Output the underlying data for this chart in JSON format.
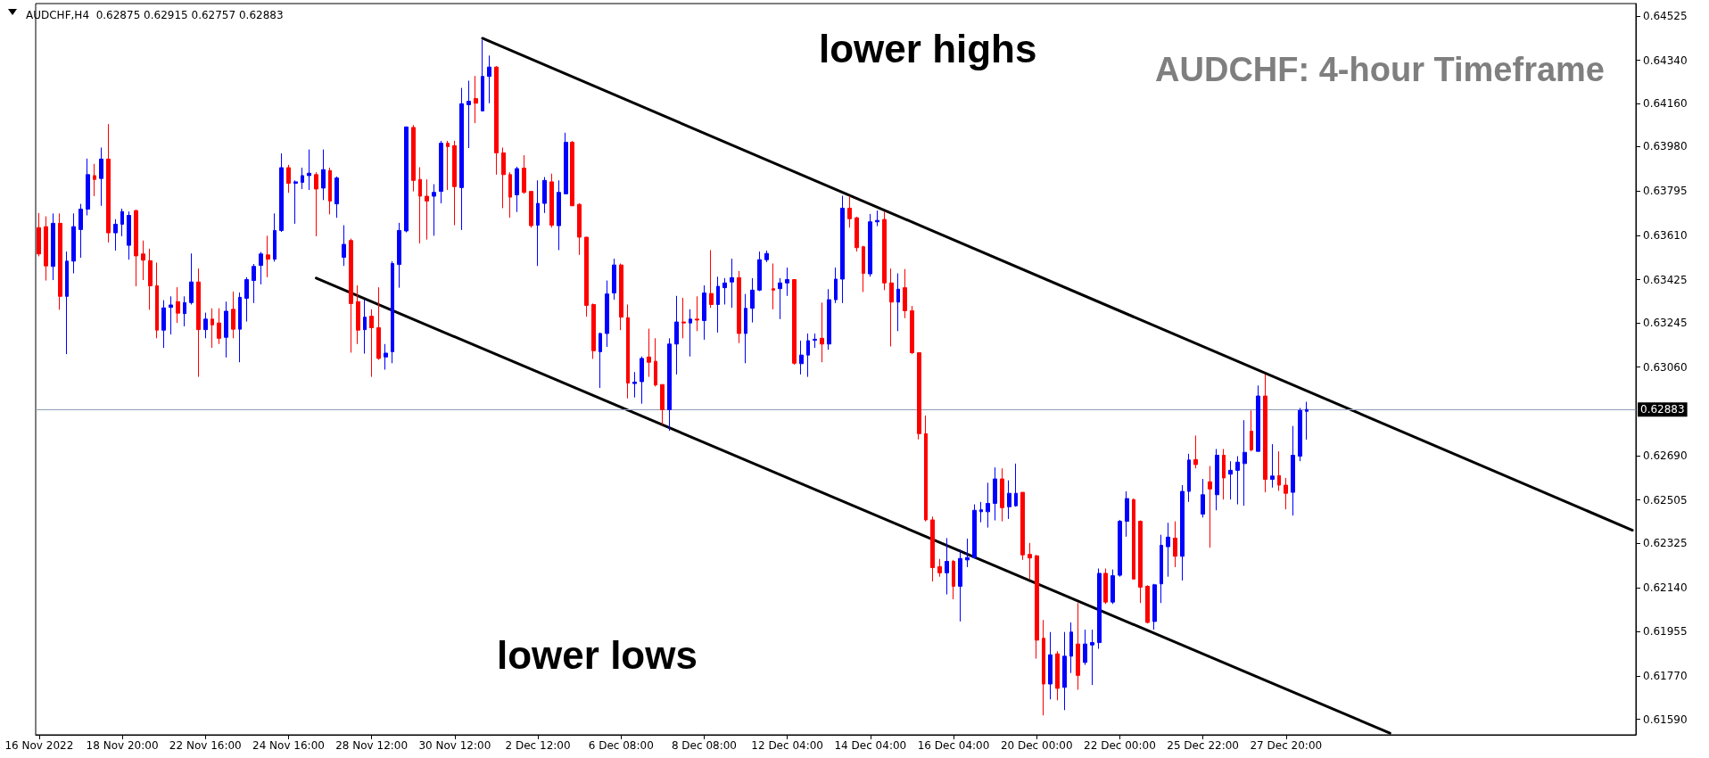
{
  "chart_data": {
    "type": "candlestick",
    "title": "AUDCHF: 4-hour Timeframe",
    "subtitle": "AUDCHF,H4  0.62875 0.62915 0.62757 0.62883",
    "annotations": [
      "lower highs",
      "lower lows"
    ],
    "colors": [
      "#ff0000",
      "#ff0000",
      "#0000ff",
      "#ff0000",
      "#0000ff",
      "#0000ff",
      "#0000ff",
      "#0000ff",
      "#ff0000",
      "#0000ff",
      "#ff0000",
      "#0000ff",
      "#0000ff",
      "#0000ff",
      "#ff0000",
      "#ff0000",
      "#ff0000",
      "#ff0000",
      "#0000ff",
      "#0000ff",
      "#ff0000",
      "#0000ff",
      "#0000ff",
      "#ff0000",
      "#0000ff",
      "#ff0000",
      "#ff0000",
      "#0000ff",
      "#ff0000",
      "#0000ff",
      "#0000ff",
      "#0000ff",
      "#0000ff",
      "#ff0000",
      "#0000ff",
      "#0000ff",
      "#ff0000",
      "#0000ff",
      "#0000ff",
      "#0000ff",
      "#ff0000",
      "#0000ff",
      "#ff0000",
      "#0000ff",
      "#0000ff",
      "#ff0000",
      "#ff0000",
      "#0000ff",
      "#ff0000",
      "#ff0000",
      "#0000ff",
      "#0000ff",
      "#0000ff",
      "#0000ff",
      "#ff0000",
      "#ff0000",
      "#ff0000",
      "#0000ff",
      "#0000ff",
      "#ff0000",
      "#ff0000",
      "#0000ff",
      "#0000ff",
      "#ff0000",
      "#0000ff",
      "#0000ff",
      "#ff0000",
      "#ff0000",
      "#ff0000",
      "#0000ff",
      "#ff0000",
      "#ff0000",
      "#0000ff",
      "#0000ff",
      "#ff0000",
      "#0000ff",
      "#0000ff",
      "#ff0000",
      "#ff0000",
      "#ff0000",
      "#ff0000",
      "#0000ff",
      "#0000ff",
      "#0000ff",
      "#ff0000",
      "#ff0000",
      "#0000ff",
      "#0000ff",
      "#ff0000",
      "#ff0000",
      "#ff0000",
      "#0000ff",
      "#0000ff",
      "#ff0000",
      "#0000ff",
      "#ff0000",
      "#0000ff",
      "#ff0000",
      "#0000ff",
      "#0000ff",
      "#0000ff",
      "#ff0000",
      "#0000ff",
      "#0000ff",
      "#0000ff",
      "#0000ff",
      "#ff0000",
      "#0000ff",
      "#0000ff",
      "#ff0000",
      "#0000ff",
      "#0000ff",
      "#0000ff",
      "#ff0000",
      "#0000ff",
      "#0000ff",
      "#0000ff",
      "#ff0000",
      "#ff0000",
      "#ff0000",
      "#0000ff",
      "#0000ff",
      "#ff0000",
      "#ff0000",
      "#0000ff",
      "#ff0000",
      "#ff0000",
      "#ff0000",
      "#ff0000",
      "#ff0000",
      "#ff0000",
      "#0000ff",
      "#ff0000",
      "#0000ff",
      "#0000ff",
      "#0000ff",
      "#0000ff",
      "#0000ff",
      "#0000ff",
      "#ff0000",
      "#0000ff",
      "#0000ff",
      "#ff0000",
      "#ff0000",
      "#ff0000",
      "#ff0000",
      "#0000ff",
      "#ff0000",
      "#0000ff",
      "#0000ff",
      "#ff0000",
      "#0000ff",
      "#0000ff",
      "#0000ff",
      "#ff0000",
      "#0000ff",
      "#0000ff",
      "#0000ff",
      "#ff0000",
      "#ff0000",
      "#ff0000",
      "#0000ff",
      "#0000ff",
      "#0000ff",
      "#ff0000",
      "#0000ff",
      "#0000ff",
      "#ff0000",
      "#0000ff",
      "#ff0000",
      "#0000ff",
      "#ff0000",
      "#0000ff",
      "#0000ff",
      "#0000ff",
      "#ff0000",
      "#0000ff",
      "#ff0000",
      "#0000ff",
      "#ff0000",
      "#ff0000",
      "#0000ff",
      "#0000ff",
      "#0000ff",
      null,
      null,
      null,
      null,
      null,
      null,
      null,
      null,
      null,
      null,
      null,
      null,
      null,
      null,
      null,
      null,
      null,
      null,
      null,
      null,
      null,
      null,
      null,
      null,
      null,
      null,
      null,
      null,
      null,
      null,
      null,
      null,
      null,
      null,
      null,
      null,
      null,
      null,
      null,
      null,
      null,
      null,
      null,
      null,
      null,
      null,
      null
    ],
    "categories": [
      "16 Nov 2022",
      null,
      null,
      null,
      null,
      null,
      null,
      null,
      null,
      null,
      null,
      null,
      "18 Nov 20:00",
      null,
      null,
      null,
      null,
      null,
      null,
      null,
      null,
      null,
      null,
      null,
      "22 Nov 16:00",
      null,
      null,
      null,
      null,
      null,
      null,
      null,
      null,
      null,
      null,
      null,
      "24 Nov 16:00",
      null,
      null,
      null,
      null,
      null,
      null,
      null,
      null,
      null,
      null,
      null,
      "28 Nov 12:00",
      null,
      null,
      null,
      null,
      null,
      null,
      null,
      null,
      null,
      null,
      null,
      "30 Nov 12:00",
      null,
      null,
      null,
      null,
      null,
      null,
      null,
      null,
      null,
      null,
      null,
      "2 Dec 12:00",
      null,
      null,
      null,
      null,
      null,
      null,
      null,
      null,
      null,
      null,
      null,
      "6 Dec 08:00",
      null,
      null,
      null,
      null,
      null,
      null,
      null,
      null,
      null,
      null,
      null,
      "8 Dec 08:00",
      null,
      null,
      null,
      null,
      null,
      null,
      null,
      null,
      null,
      null,
      null,
      "12 Dec 04:00",
      null,
      null,
      null,
      null,
      null,
      null,
      null,
      null,
      null,
      null,
      null,
      "14 Dec 04:00",
      null,
      null,
      null,
      null,
      null,
      null,
      null,
      null,
      null,
      null,
      null,
      "16 Dec 04:00",
      null,
      null,
      null,
      null,
      null,
      null,
      null,
      null,
      null,
      null,
      null,
      "20 Dec 00:00",
      null,
      null,
      null,
      null,
      null,
      null,
      null,
      null,
      null,
      null,
      null,
      "22 Dec 00:00",
      null,
      null,
      null,
      null,
      null,
      null,
      null,
      null,
      null,
      null,
      null,
      "25 Dec 22:00",
      null,
      null,
      null,
      null,
      null,
      null,
      null,
      null,
      null,
      null,
      null,
      "27 Dec 20:00",
      null,
      null,
      null,
      null,
      null,
      null,
      null,
      null,
      null,
      null,
      null,
      null,
      null,
      null,
      null,
      null,
      null,
      null,
      null,
      null,
      null,
      null,
      null,
      null,
      null,
      null,
      null,
      null,
      null,
      null,
      null,
      null,
      null,
      null,
      null,
      null,
      null,
      null,
      null,
      null,
      null,
      null,
      null,
      null,
      null,
      null,
      null,
      null,
      null,
      null
    ],
    "ohlc": [
      [
        0.63642,
        0.63703,
        0.63522,
        0.63532
      ],
      [
        0.63646,
        0.63689,
        0.63421,
        0.63482
      ],
      [
        0.6348,
        0.63701,
        0.63423,
        0.6366
      ],
      [
        0.6366,
        0.63701,
        0.63299,
        0.63355
      ],
      [
        0.63355,
        0.63542,
        0.63114,
        0.63502
      ],
      [
        0.63502,
        0.63701,
        0.63451,
        0.63646
      ],
      [
        0.63634,
        0.63741,
        0.63516,
        0.63719
      ],
      [
        0.63719,
        0.6393,
        0.63693,
        0.63863
      ],
      [
        0.63859,
        0.63908,
        0.63773,
        0.63843
      ],
      [
        0.63847,
        0.63976,
        0.63733,
        0.63928
      ],
      [
        0.63928,
        0.64074,
        0.6358,
        0.6362
      ],
      [
        0.6362,
        0.63677,
        0.63546,
        0.63656
      ],
      [
        0.63656,
        0.63721,
        0.63606,
        0.63709
      ],
      [
        0.63568,
        0.63709,
        0.63508,
        0.63693
      ],
      [
        0.63713,
        0.63717,
        0.63397,
        0.63524
      ],
      [
        0.63532,
        0.63588,
        0.63423,
        0.63506
      ],
      [
        0.63504,
        0.63554,
        0.63299,
        0.63399
      ],
      [
        0.63399,
        0.63496,
        0.6318,
        0.63214
      ],
      [
        0.63214,
        0.63339,
        0.6314,
        0.63307
      ],
      [
        0.63309,
        0.63355,
        0.63196,
        0.63319
      ],
      [
        0.63333,
        0.63393,
        0.63244,
        0.63285
      ],
      [
        0.63283,
        0.63355,
        0.6323,
        0.63329
      ],
      [
        0.63329,
        0.63534,
        0.63321,
        0.63415
      ],
      [
        0.63415,
        0.63471,
        0.63019,
        0.63216
      ],
      [
        0.63216,
        0.63287,
        0.6318,
        0.6326
      ],
      [
        0.6326,
        0.63305,
        0.6314,
        0.63236
      ],
      [
        0.63244,
        0.63305,
        0.63156,
        0.6318
      ],
      [
        0.63184,
        0.63333,
        0.631,
        0.63293
      ],
      [
        0.63301,
        0.63375,
        0.6318,
        0.63218
      ],
      [
        0.63218,
        0.63371,
        0.6308,
        0.63351
      ],
      [
        0.63347,
        0.63435,
        0.6325,
        0.63425
      ],
      [
        0.63421,
        0.6349,
        0.63327,
        0.6348
      ],
      [
        0.63484,
        0.6354,
        0.63405,
        0.63532
      ],
      [
        0.63528,
        0.63608,
        0.63435,
        0.6351
      ],
      [
        0.6351,
        0.63701,
        0.635,
        0.6363
      ],
      [
        0.6363,
        0.63952,
        0.63624,
        0.63892
      ],
      [
        0.63892,
        0.63904,
        0.63787,
        0.63827
      ],
      [
        0.63827,
        0.63839,
        0.63658,
        0.63833
      ],
      [
        0.63831,
        0.63892,
        0.63803,
        0.63859
      ],
      [
        0.63859,
        0.63968,
        0.63799,
        0.63869
      ],
      [
        0.63863,
        0.63873,
        0.63606,
        0.63803
      ],
      [
        0.63807,
        0.63968,
        0.63757,
        0.63884
      ],
      [
        0.6388,
        0.63892,
        0.63697,
        0.63753
      ],
      [
        0.63741,
        0.63855,
        0.63683,
        0.63849
      ],
      [
        0.63518,
        0.63652,
        0.63482,
        0.63572
      ],
      [
        0.63588,
        0.63596,
        0.6312,
        0.63325
      ],
      [
        0.63333,
        0.63401,
        0.63156,
        0.63214
      ],
      [
        0.63216,
        0.63341,
        0.63116,
        0.63268
      ],
      [
        0.63272,
        0.63301,
        0.63019,
        0.63224
      ],
      [
        0.63224,
        0.63393,
        0.6309,
        0.63096
      ],
      [
        0.63102,
        0.63156,
        0.63049,
        0.63118
      ],
      [
        0.63124,
        0.63502,
        0.63076,
        0.63492
      ],
      [
        0.63488,
        0.63662,
        0.63391,
        0.6363
      ],
      [
        0.63628,
        0.64064,
        0.63622,
        0.64062
      ],
      [
        0.6406,
        0.6407,
        0.63793,
        0.63839
      ],
      [
        0.63843,
        0.63894,
        0.63576,
        0.63773
      ],
      [
        0.63773,
        0.63843,
        0.63592,
        0.63753
      ],
      [
        0.63773,
        0.63823,
        0.63608,
        0.63789
      ],
      [
        0.63793,
        0.64004,
        0.63743,
        0.63994
      ],
      [
        0.63994,
        0.64004,
        0.63799,
        0.6398
      ],
      [
        0.63984,
        0.64004,
        0.63652,
        0.63813
      ],
      [
        0.63809,
        0.64225,
        0.63632,
        0.64159
      ],
      [
        0.64155,
        0.64255,
        0.63974,
        0.64169
      ],
      [
        0.64181,
        0.64275,
        0.64078,
        0.64161
      ],
      [
        0.64129,
        0.64426,
        0.64129,
        0.64273
      ],
      [
        0.64273,
        0.6436,
        0.64161,
        0.64312
      ],
      [
        0.64312,
        0.64316,
        0.63863,
        0.63954
      ],
      [
        0.63954,
        0.63976,
        0.63723,
        0.63863
      ],
      [
        0.63863,
        0.63873,
        0.63683,
        0.63769
      ],
      [
        0.63779,
        0.63896,
        0.63707,
        0.63888
      ],
      [
        0.6389,
        0.63944,
        0.63783,
        0.63789
      ],
      [
        0.63793,
        0.63793,
        0.63642,
        0.6365
      ],
      [
        0.63652,
        0.63839,
        0.63482,
        0.63743
      ],
      [
        0.63743,
        0.63853,
        0.63703,
        0.63839
      ],
      [
        0.63833,
        0.63867,
        0.63642,
        0.63652
      ],
      [
        0.6365,
        0.63839,
        0.63548,
        0.63789
      ],
      [
        0.63783,
        0.64038,
        0.63783,
        0.63998
      ],
      [
        0.63998,
        0.64004,
        0.63733,
        0.63733
      ],
      [
        0.63739,
        0.63743,
        0.63528,
        0.63602
      ],
      [
        0.63602,
        0.63602,
        0.6327,
        0.63317
      ],
      [
        0.63321,
        0.63325,
        0.63094,
        0.63128
      ],
      [
        0.63124,
        0.63204,
        0.62973,
        0.632
      ],
      [
        0.632,
        0.63421,
        0.63144,
        0.63365
      ],
      [
        0.63369,
        0.63512,
        0.63341,
        0.63486
      ],
      [
        0.63486,
        0.63492,
        0.63214,
        0.63268
      ],
      [
        0.63266,
        0.63321,
        0.62929,
        0.62993
      ],
      [
        0.62991,
        0.63039,
        0.62933,
        0.62997
      ],
      [
        0.62999,
        0.63104,
        0.62907,
        0.63096
      ],
      [
        0.63102,
        0.6322,
        0.63019,
        0.6308
      ],
      [
        0.63084,
        0.6318,
        0.62979,
        0.62985
      ],
      [
        0.62987,
        0.62987,
        0.62818,
        0.62882
      ],
      [
        0.62882,
        0.6318,
        0.62794,
        0.63156
      ],
      [
        0.63156,
        0.63357,
        0.63029,
        0.63248
      ],
      [
        0.63248,
        0.63349,
        0.6318,
        0.63244
      ],
      [
        0.63244,
        0.63301,
        0.63104,
        0.6326
      ],
      [
        0.6326,
        0.63355,
        0.6321,
        0.63256
      ],
      [
        0.63254,
        0.63401,
        0.63174,
        0.63369
      ],
      [
        0.63367,
        0.63548,
        0.63307,
        0.63321
      ],
      [
        0.63321,
        0.63437,
        0.63204,
        0.63397
      ],
      [
        0.63391,
        0.63431,
        0.63321,
        0.63411
      ],
      [
        0.63415,
        0.63512,
        0.63307,
        0.63433
      ],
      [
        0.63433,
        0.63461,
        0.6316,
        0.632
      ],
      [
        0.632,
        0.63365,
        0.63076,
        0.63305
      ],
      [
        0.63305,
        0.63431,
        0.63246,
        0.63381
      ],
      [
        0.63381,
        0.63542,
        0.63377,
        0.63508
      ],
      [
        0.63508,
        0.63546,
        0.63498,
        0.63534
      ],
      [
        0.63387,
        0.63492,
        0.63301,
        0.63381
      ],
      [
        0.63387,
        0.63431,
        0.6326,
        0.63411
      ],
      [
        0.63411,
        0.63475,
        0.63357,
        0.63425
      ],
      [
        0.63425,
        0.63425,
        0.6307,
        0.63076
      ],
      [
        0.63074,
        0.6317,
        0.63029,
        0.6311
      ],
      [
        0.6311,
        0.632,
        0.63019,
        0.6317
      ],
      [
        0.63172,
        0.632,
        0.6314,
        0.63176
      ],
      [
        0.6318,
        0.63329,
        0.6308,
        0.63156
      ],
      [
        0.63156,
        0.63385,
        0.63132,
        0.63341
      ],
      [
        0.63341,
        0.63475,
        0.63327,
        0.63427
      ],
      [
        0.63427,
        0.63775,
        0.63327,
        0.63723
      ],
      [
        0.63723,
        0.63773,
        0.63642,
        0.63679
      ],
      [
        0.63683,
        0.63687,
        0.63542,
        0.63558
      ],
      [
        0.63562,
        0.63566,
        0.63373,
        0.63451
      ],
      [
        0.63449,
        0.63699,
        0.63437,
        0.63666
      ],
      [
        0.63666,
        0.63713,
        0.63648,
        0.63672
      ],
      [
        0.63676,
        0.63709,
        0.63381,
        0.63411
      ],
      [
        0.63411,
        0.63471,
        0.63146,
        0.63331
      ],
      [
        0.63331,
        0.63451,
        0.6321,
        0.63385
      ],
      [
        0.63391,
        0.63469,
        0.63264,
        0.63295
      ],
      [
        0.63295,
        0.63315,
        0.63114,
        0.6312
      ],
      [
        0.6312,
        0.6312,
        0.62758,
        0.62782
      ],
      [
        0.62782,
        0.62858,
        0.62416,
        0.62422
      ],
      [
        0.62422,
        0.62436,
        0.62165,
        0.62223
      ],
      [
        0.62227,
        0.62259,
        0.62185,
        0.62201
      ],
      [
        0.62201,
        0.62346,
        0.62111,
        0.62249
      ],
      [
        0.62249,
        0.62255,
        0.62091,
        0.62145
      ],
      [
        0.62145,
        0.62299,
        0.61998,
        0.62261
      ],
      [
        0.62255,
        0.62344,
        0.62225,
        0.62265
      ],
      [
        0.62265,
        0.62487,
        0.62261,
        0.62462
      ],
      [
        0.62456,
        0.62497,
        0.62412,
        0.62464
      ],
      [
        0.62456,
        0.62577,
        0.6239,
        0.62491
      ],
      [
        0.62491,
        0.62641,
        0.6242,
        0.62593
      ],
      [
        0.62593,
        0.62637,
        0.62416,
        0.62473
      ],
      [
        0.62477,
        0.62587,
        0.62426,
        0.62533
      ],
      [
        0.62481,
        0.62657,
        0.62477,
        0.62533
      ],
      [
        0.62537,
        0.62537,
        0.62255,
        0.62276
      ],
      [
        0.62278,
        0.62326,
        0.62175,
        0.62263
      ],
      [
        0.62272,
        0.62276,
        0.61843,
        0.6192
      ],
      [
        0.61928,
        0.62004,
        0.61606,
        0.61737
      ],
      [
        0.61737,
        0.61954,
        0.61673,
        0.61859
      ],
      [
        0.61863,
        0.61874,
        0.61669,
        0.61719
      ],
      [
        0.61723,
        0.61954,
        0.61628,
        0.61853
      ],
      [
        0.61853,
        0.61994,
        0.61783,
        0.61954
      ],
      [
        0.61904,
        0.62075,
        0.61713,
        0.61773
      ],
      [
        0.61827,
        0.61964,
        0.61817,
        0.61904
      ],
      [
        0.619,
        0.61964,
        0.61733,
        0.6191
      ],
      [
        0.6191,
        0.62219,
        0.61884,
        0.62199
      ],
      [
        0.62199,
        0.62219,
        0.62071,
        0.62079
      ],
      [
        0.62079,
        0.62215,
        0.62071,
        0.62189
      ],
      [
        0.62191,
        0.62422,
        0.62185,
        0.62416
      ],
      [
        0.62416,
        0.62541,
        0.62352,
        0.62511
      ],
      [
        0.62507,
        0.62511,
        0.62175,
        0.62175
      ],
      [
        0.62416,
        0.6242,
        0.62075,
        0.62141
      ],
      [
        0.62145,
        0.62149,
        0.6199,
        0.61994
      ],
      [
        0.61998,
        0.62155,
        0.61964,
        0.62151
      ],
      [
        0.62155,
        0.6236,
        0.62075,
        0.62316
      ],
      [
        0.6231,
        0.6241,
        0.62185,
        0.6235
      ],
      [
        0.62346,
        0.62416,
        0.62225,
        0.6227
      ],
      [
        0.6227,
        0.62567,
        0.62169,
        0.62541
      ],
      [
        0.62541,
        0.62698,
        0.62497,
        0.62672
      ],
      [
        0.62674,
        0.62774,
        0.62637,
        0.62653
      ],
      [
        0.62446,
        0.62593,
        0.62432,
        0.62527
      ],
      [
        0.62581,
        0.62647,
        0.62306,
        0.62551
      ],
      [
        0.62527,
        0.62718,
        0.62462,
        0.62692
      ],
      [
        0.62692,
        0.62718,
        0.62507,
        0.62597
      ],
      [
        0.62613,
        0.62667,
        0.62507,
        0.62629
      ],
      [
        0.62629,
        0.62688,
        0.62487,
        0.62663
      ],
      [
        0.62657,
        0.62838,
        0.62481,
        0.62704
      ],
      [
        0.62792,
        0.62879,
        0.62708,
        0.62714
      ],
      [
        0.62708,
        0.62983,
        0.62708,
        0.62939
      ],
      [
        0.62939,
        0.63029,
        0.62537,
        0.62591
      ],
      [
        0.62591,
        0.62738,
        0.62557,
        0.62605
      ],
      [
        0.62607,
        0.62708,
        0.62543,
        0.62567
      ],
      [
        0.62567,
        0.62597,
        0.62466,
        0.62533
      ],
      [
        0.62537,
        0.62814,
        0.6244,
        0.62692
      ],
      [
        0.62688,
        0.62889,
        0.62667,
        0.62879
      ],
      [
        0.62875,
        0.62915,
        0.62757,
        0.62883
      ],
      null,
      null,
      null,
      null,
      null,
      null,
      null,
      null,
      null,
      null,
      null,
      null,
      null,
      null,
      null,
      null,
      null,
      null,
      null,
      null,
      null,
      null,
      null,
      null,
      null,
      null,
      null,
      null,
      null,
      null,
      null,
      null,
      null,
      null,
      null,
      null,
      null,
      null,
      null,
      null,
      null,
      null,
      null,
      null,
      null,
      null,
      null
    ],
    "series": [
      {
        "type": "line",
        "color": "#000000",
        "values": [
          null,
          null,
          null,
          null,
          null,
          null,
          null,
          null,
          null,
          null,
          null,
          null,
          null,
          null,
          null,
          null,
          null,
          null,
          null,
          null,
          null,
          null,
          null,
          null,
          null,
          null,
          null,
          null,
          null,
          null,
          null,
          null,
          null,
          null,
          null,
          null,
          null,
          null,
          null,
          null,
          null,
          null,
          null,
          null,
          null,
          null,
          null,
          null,
          null,
          null,
          null,
          null,
          null,
          null,
          null,
          null,
          null,
          null,
          null,
          null,
          null,
          null,
          null,
          null,
          0.64432,
          null,
          null,
          null,
          null,
          null,
          null,
          null,
          null,
          null,
          null,
          null,
          null,
          null,
          null,
          null,
          null,
          null,
          null,
          null,
          null,
          null,
          null,
          null,
          null,
          null,
          null,
          null,
          null,
          null,
          null,
          null,
          null,
          null,
          null,
          null,
          null,
          null,
          null,
          null,
          null,
          null,
          null,
          null,
          null,
          null,
          null,
          null,
          null,
          null,
          null,
          null,
          null,
          null,
          null,
          null,
          null,
          null,
          null,
          null,
          null,
          null,
          null,
          null,
          null,
          null,
          null,
          null,
          null,
          null,
          null,
          null,
          null,
          null,
          null,
          null,
          null,
          null,
          null,
          null,
          null,
          null,
          null,
          null,
          null,
          null,
          null,
          null,
          null,
          null,
          null,
          null,
          null,
          null,
          null,
          null,
          null,
          null,
          null,
          null,
          null,
          null,
          null,
          null,
          null,
          null,
          null,
          null,
          null,
          null,
          null,
          null,
          null,
          null,
          null,
          null,
          null,
          null,
          null,
          null,
          null,
          null,
          null,
          null,
          null,
          null,
          null,
          null,
          null,
          null,
          null,
          null,
          null,
          null,
          null,
          null,
          null,
          null,
          null,
          null,
          null,
          null,
          null,
          null,
          null,
          null,
          null,
          null,
          null,
          null,
          null,
          null,
          null,
          null,
          null,
          null,
          null,
          null,
          null,
          null,
          null,
          null,
          null,
          null,
          null,
          null,
          0.62379
        ]
      },
      {
        "type": "line",
        "color": "#000000",
        "values": [
          null,
          null,
          null,
          null,
          null,
          null,
          null,
          null,
          null,
          null,
          null,
          null,
          null,
          null,
          null,
          null,
          null,
          null,
          null,
          null,
          null,
          null,
          null,
          null,
          null,
          null,
          null,
          null,
          null,
          null,
          null,
          null,
          null,
          null,
          null,
          null,
          null,
          null,
          null,
          null,
          0.63431,
          null,
          null,
          null,
          null,
          null,
          null,
          null,
          null,
          null,
          null,
          null,
          null,
          null,
          null,
          null,
          null,
          null,
          null,
          null,
          null,
          null,
          null,
          null,
          null,
          null,
          null,
          null,
          null,
          null,
          null,
          null,
          null,
          null,
          null,
          null,
          null,
          null,
          null,
          null,
          null,
          null,
          null,
          null,
          null,
          null,
          null,
          null,
          null,
          null,
          null,
          null,
          null,
          null,
          null,
          null,
          null,
          null,
          null,
          null,
          null,
          null,
          null,
          null,
          null,
          null,
          null,
          null,
          null,
          null,
          null,
          null,
          null,
          null,
          null,
          null,
          null,
          null,
          null,
          null,
          null,
          null,
          null,
          null,
          null,
          null,
          null,
          null,
          null,
          null,
          null,
          null,
          null,
          null,
          null,
          null,
          null,
          null,
          null,
          null,
          null,
          null,
          null,
          null,
          null,
          null,
          null,
          null,
          null,
          null,
          null,
          null,
          null,
          null,
          null,
          null,
          null,
          null,
          null,
          null,
          null,
          null,
          null,
          null,
          null,
          null,
          null,
          null,
          null,
          null,
          null,
          null,
          null,
          null,
          null,
          null,
          null,
          null,
          null,
          null,
          null,
          null,
          null,
          null,
          null,
          null,
          null,
          null,
          null,
          null,
          null,
          null,
          null,
          null,
          null,
          0.61532,
          null,
          null,
          null,
          null,
          null,
          null,
          null,
          null,
          null,
          null,
          null,
          null,
          null,
          null,
          null,
          null,
          null,
          null,
          null,
          null,
          null,
          null,
          null,
          null,
          null,
          null,
          null,
          null,
          null,
          null,
          null,
          null,
          null,
          null,
          null
        ]
      }
    ],
    "ylim": [
      0.61525,
      0.64577
    ],
    "yticks": [
      0.64525,
      {
        "value": 0.6434,
        "label": "0.64340"
      },
      {
        "value": 0.6416,
        "label": "0.64160"
      },
      {
        "value": 0.6398,
        "label": "0.63980"
      },
      0.63795,
      {
        "value": 0.6361,
        "label": "0.63610"
      },
      0.63425,
      0.63245,
      {
        "value": 0.6306,
        "label": "0.63060"
      },
      {
        "value": 0.6269,
        "label": "0.62690"
      },
      0.62505,
      0.62325,
      {
        "value": 0.6214,
        "label": "0.62140"
      },
      0.61955,
      {
        "value": 0.6177,
        "label": "0.61770"
      },
      {
        "value": 0.6159,
        "label": "0.61590"
      }
    ],
    "ref_lines": [
      {
        "axis": "y",
        "value": 0.62883,
        "label": "0.62883",
        "color": "#8e9fb8"
      }
    ]
  }
}
